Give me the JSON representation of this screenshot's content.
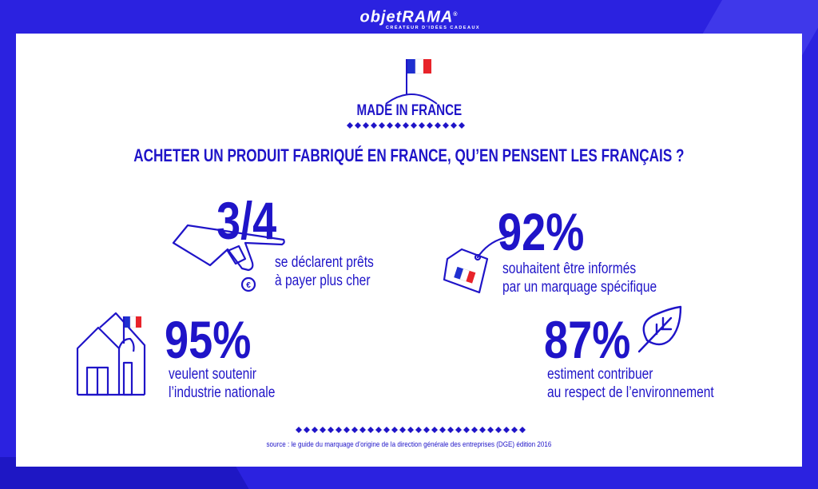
{
  "logo": {
    "wordmark": "objetRAMA",
    "registered": "®",
    "tagline": "CRÉATEUR D'IDÉES CADEAUX"
  },
  "header": {
    "label": "MADE IN FRANCE",
    "title": "ACHETER UN PRODUIT FABRIQUÉ EN FRANCE, QU’EN PENSENT LES FRANÇAIS ?"
  },
  "stats": [
    {
      "value": "3/4",
      "line1": "se déclarent prêts",
      "line2": "à payer plus cher",
      "icon": "hand-coin-icon"
    },
    {
      "value": "92%",
      "line1": "souhaitent être informés",
      "line2": "par un marquage spécifique",
      "icon": "price-tag-icon"
    },
    {
      "value": "95%",
      "line1": "veulent soutenir",
      "line2": "l’industrie nationale",
      "icon": "factory-icon"
    },
    {
      "value": "87%",
      "line1": "estiment contribuer",
      "line2": "au respect de l’environnement",
      "icon": "leaf-icon"
    }
  ],
  "source": "source : le guide du marquage d’origine de la direction générale des entreprises (DGE) édition 2016",
  "colors": {
    "brand_blue": "#1f14c8",
    "background": "#2b22e0",
    "flag_blue": "#1f2fd0",
    "flag_red": "#e8232a"
  }
}
